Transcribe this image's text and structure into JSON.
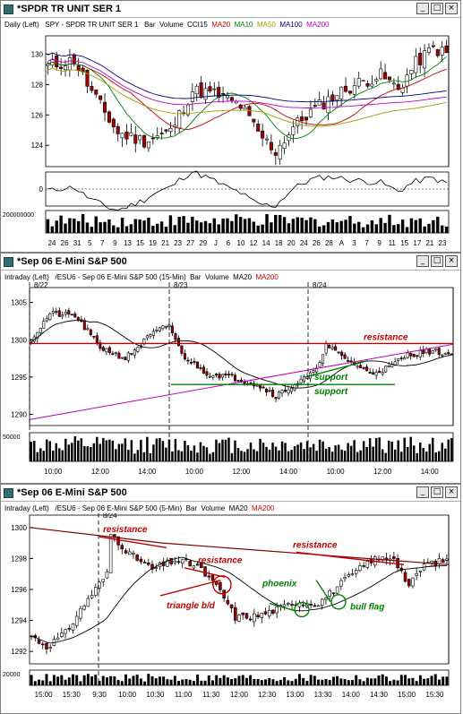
{
  "w1": {
    "title": "*SPDR TR UNIT SER 1",
    "sub": {
      "p1": "Daily (Left)",
      "p2": "SPY - SPDR TR UNIT SER 1",
      "p3": "Bar",
      "p4": "Volume",
      "p5": "CCI15",
      "p6": "MA20",
      "p7": "MA10",
      "p8": "MA50",
      "p9": "MA100",
      "p10": "MA200"
    },
    "osc_zero": "0",
    "vol_label": "200000000"
  },
  "w2": {
    "title": "*Sep 06 E-Mini S&P 500",
    "sub": {
      "p1": "Intraday (Left)",
      "p2": "/ESU6 - Sep 06 E-Mini S&P 500 (15-Min)",
      "p3": "Bar",
      "p4": "Volume",
      "p5": "MA20",
      "p6": "MA200"
    },
    "vol_label": "50000"
  },
  "w3": {
    "title": "*Sep 06 E-Mini S&P 500",
    "sub": {
      "p1": "Intraday (Left)",
      "p2": "/ESU6 - Sep 06 E-Mini S&P 500 (5-Min)",
      "p3": "Bar",
      "p4": "Volume",
      "p5": "MA20",
      "p6": "MA200"
    },
    "vol_label": "20000"
  },
  "colors": {
    "ma20": "#c00000",
    "ma10": "#008000",
    "ma50": "#a0a000",
    "ma100": "#000080",
    "ma200": "#c000c0",
    "anno_red": "#c00000",
    "anno_green": "#008000",
    "up": "#ffffff",
    "down": "#a00000"
  },
  "chart_data": [
    {
      "type": "bar",
      "name": "SPY daily",
      "y_ticks": [
        "124",
        "126",
        "128",
        "130"
      ],
      "ylim": [
        122.6,
        131.2
      ],
      "x_ticks": [
        "24",
        "26",
        "31",
        "5",
        "7",
        "9",
        "13",
        "15",
        "19",
        "21",
        "23",
        "27",
        "29",
        "J",
        "6",
        "10",
        "12",
        "14",
        "18",
        "20",
        "24",
        "26",
        "28",
        "A",
        "3",
        "7",
        "9",
        "11",
        "15",
        "17",
        "21",
        "23"
      ],
      "moving_averages": [
        "MA20",
        "MA10",
        "MA50",
        "MA100",
        "MA200"
      ],
      "volume_axis": "200000000",
      "osc_axis": "0"
    },
    {
      "type": "bar",
      "name": "ESU6 15-min",
      "y_ticks": [
        "1290",
        "1295",
        "1300",
        "1305"
      ],
      "ylim": [
        1288.5,
        1307
      ],
      "x_ticks": [
        "10:00",
        "12:00",
        "14:00",
        "10:00",
        "12:00",
        "14:00",
        "10:00",
        "12:00",
        "14:00"
      ],
      "date_markers": [
        "8/22",
        "8/23",
        "8/24"
      ],
      "resistance": 1299.5,
      "support": [
        1294,
        1294.2
      ],
      "annotations": [
        "resistance",
        "support",
        "support"
      ],
      "volume_axis": "50000"
    },
    {
      "type": "bar",
      "name": "ESU6 5-min",
      "y_ticks": [
        "1292",
        "1294",
        "1296",
        "1298",
        "1300"
      ],
      "ylim": [
        1291.2,
        1300.8
      ],
      "x_ticks": [
        "15:00",
        "15:30",
        "9:30",
        "10:00",
        "10:30",
        "11:00",
        "11:30",
        "12:00",
        "12:30",
        "13:00",
        "13:30",
        "14:00",
        "14:30",
        "15:00",
        "15:30"
      ],
      "date_markers": [
        "8/24"
      ],
      "annotations": [
        "resistance",
        "resistance",
        "resistance",
        "triangle b/d",
        "phoenix",
        "bull flag"
      ],
      "volume_axis": "20000"
    }
  ]
}
